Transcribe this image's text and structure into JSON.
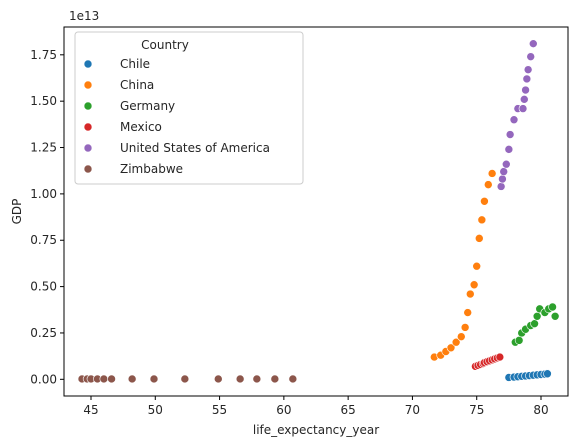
{
  "chart_data": {
    "type": "scatter",
    "xlabel": "life_expectancy_year",
    "ylabel": "GDP",
    "y_offset_label": "1e13",
    "xlim": [
      42.9,
      82.1
    ],
    "ylim": [
      -0.09,
      1.9
    ],
    "y_scale_exponent": 13,
    "x_ticks": [
      45,
      50,
      55,
      60,
      65,
      70,
      75,
      80
    ],
    "y_ticks": [
      0.0,
      0.25,
      0.5,
      0.75,
      1.0,
      1.25,
      1.5,
      1.75
    ],
    "x_tick_labels": [
      "45",
      "50",
      "55",
      "60",
      "65",
      "70",
      "75",
      "80"
    ],
    "y_tick_labels": [
      "0.00",
      "0.25",
      "0.50",
      "0.75",
      "1.00",
      "1.25",
      "1.50",
      "1.75"
    ],
    "grid": false,
    "legend": {
      "title": "Country",
      "placement": "upper-left"
    },
    "series": [
      {
        "name": "Chile",
        "color": "#1f77b4",
        "points": [
          [
            77.5,
            0.01
          ],
          [
            77.9,
            0.012
          ],
          [
            78.2,
            0.014
          ],
          [
            78.5,
            0.016
          ],
          [
            78.8,
            0.018
          ],
          [
            79.1,
            0.02
          ],
          [
            79.4,
            0.022
          ],
          [
            79.7,
            0.024
          ],
          [
            80.0,
            0.026
          ],
          [
            80.3,
            0.028
          ],
          [
            80.5,
            0.03
          ]
        ]
      },
      {
        "name": "China",
        "color": "#ff7f0e",
        "points": [
          [
            71.7,
            0.12
          ],
          [
            72.2,
            0.13
          ],
          [
            72.6,
            0.15
          ],
          [
            73.0,
            0.17
          ],
          [
            73.4,
            0.2
          ],
          [
            73.8,
            0.23
          ],
          [
            74.1,
            0.28
          ],
          [
            74.3,
            0.36
          ],
          [
            74.5,
            0.46
          ],
          [
            74.8,
            0.51
          ],
          [
            75.0,
            0.61
          ],
          [
            75.2,
            0.76
          ],
          [
            75.4,
            0.86
          ],
          [
            75.6,
            0.96
          ],
          [
            75.9,
            1.05
          ],
          [
            76.2,
            1.11
          ]
        ]
      },
      {
        "name": "Germany",
        "color": "#2ca02c",
        "points": [
          [
            78.0,
            0.2
          ],
          [
            78.3,
            0.21
          ],
          [
            78.5,
            0.25
          ],
          [
            78.8,
            0.27
          ],
          [
            79.2,
            0.29
          ],
          [
            79.5,
            0.3
          ],
          [
            79.7,
            0.34
          ],
          [
            79.9,
            0.38
          ],
          [
            80.3,
            0.36
          ],
          [
            80.6,
            0.38
          ],
          [
            80.9,
            0.39
          ],
          [
            81.1,
            0.34
          ]
        ]
      },
      {
        "name": "Mexico",
        "color": "#d62728",
        "points": [
          [
            74.9,
            0.07
          ],
          [
            75.1,
            0.075
          ],
          [
            75.3,
            0.08
          ],
          [
            75.5,
            0.085
          ],
          [
            75.6,
            0.09
          ],
          [
            75.8,
            0.095
          ],
          [
            76.0,
            0.1
          ],
          [
            76.2,
            0.105
          ],
          [
            76.4,
            0.11
          ],
          [
            76.6,
            0.115
          ],
          [
            76.8,
            0.12
          ]
        ]
      },
      {
        "name": "United States of America",
        "color": "#9467bd",
        "points": [
          [
            76.9,
            1.04
          ],
          [
            77.0,
            1.08
          ],
          [
            77.1,
            1.12
          ],
          [
            77.3,
            1.16
          ],
          [
            77.5,
            1.24
          ],
          [
            77.6,
            1.32
          ],
          [
            77.9,
            1.4
          ],
          [
            78.2,
            1.46
          ],
          [
            78.6,
            1.46
          ],
          [
            78.7,
            1.51
          ],
          [
            78.8,
            1.56
          ],
          [
            78.9,
            1.62
          ],
          [
            79.0,
            1.67
          ],
          [
            79.2,
            1.74
          ],
          [
            79.4,
            1.81
          ]
        ]
      },
      {
        "name": "Zimbabwe",
        "color": "#8c564b",
        "points": [
          [
            44.3,
            0.002
          ],
          [
            44.7,
            0.002
          ],
          [
            45.0,
            0.002
          ],
          [
            45.5,
            0.002
          ],
          [
            46.0,
            0.002
          ],
          [
            46.6,
            0.002
          ],
          [
            48.2,
            0.002
          ],
          [
            49.9,
            0.002
          ],
          [
            52.3,
            0.002
          ],
          [
            54.9,
            0.002
          ],
          [
            56.6,
            0.002
          ],
          [
            57.9,
            0.002
          ],
          [
            59.3,
            0.002
          ],
          [
            60.7,
            0.002
          ]
        ]
      }
    ]
  }
}
